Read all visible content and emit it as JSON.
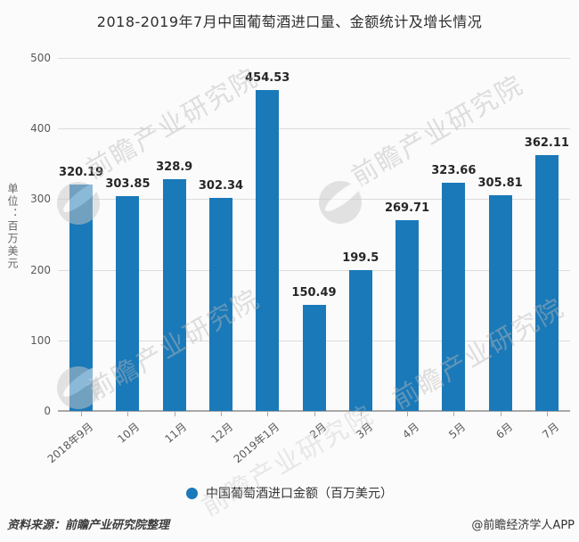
{
  "title": "2018-2019年7月中国葡萄酒进口量、金额统计及增长情况",
  "chart_data": {
    "type": "bar",
    "title": "2018-2019年7月中国葡萄酒进口量、金额统计及增长情况",
    "categories": [
      "2018年9月",
      "10月",
      "11月",
      "12月",
      "2019年1月",
      "2月",
      "3月",
      "4月",
      "5月",
      "6月",
      "7月"
    ],
    "values": [
      320.19,
      303.85,
      328.9,
      302.34,
      454.53,
      150.49,
      199.5,
      269.71,
      323.66,
      305.81,
      362.11
    ],
    "value_labels": [
      "320.19",
      "303.85",
      "328.9",
      "302.34",
      "454.53",
      "150.49",
      "199.5",
      "269.71",
      "323.66",
      "305.81",
      "362.11"
    ],
    "xlabel": "",
    "ylabel": "单位：百万美元",
    "ylim": [
      0,
      500
    ],
    "yticks": [
      0,
      100,
      200,
      300,
      400,
      500
    ],
    "grid": true,
    "legend_position": "bottom",
    "series_name": "中国葡萄酒进口金额（百万美元）",
    "bar_color": "#1a79b8"
  },
  "legend": {
    "label": "中国葡萄酒进口金额（百万美元）"
  },
  "footer": {
    "source": "资料来源：前瞻产业研究院整理",
    "credit": "@前瞻经济学人APP"
  },
  "watermark": {
    "text": "前瞻产业研究院",
    "logo_name": "qianzhan-logo"
  },
  "colors": {
    "bar": "#1a79b8",
    "grid": "#dcdcdc",
    "axis": "#a8a8a8"
  }
}
